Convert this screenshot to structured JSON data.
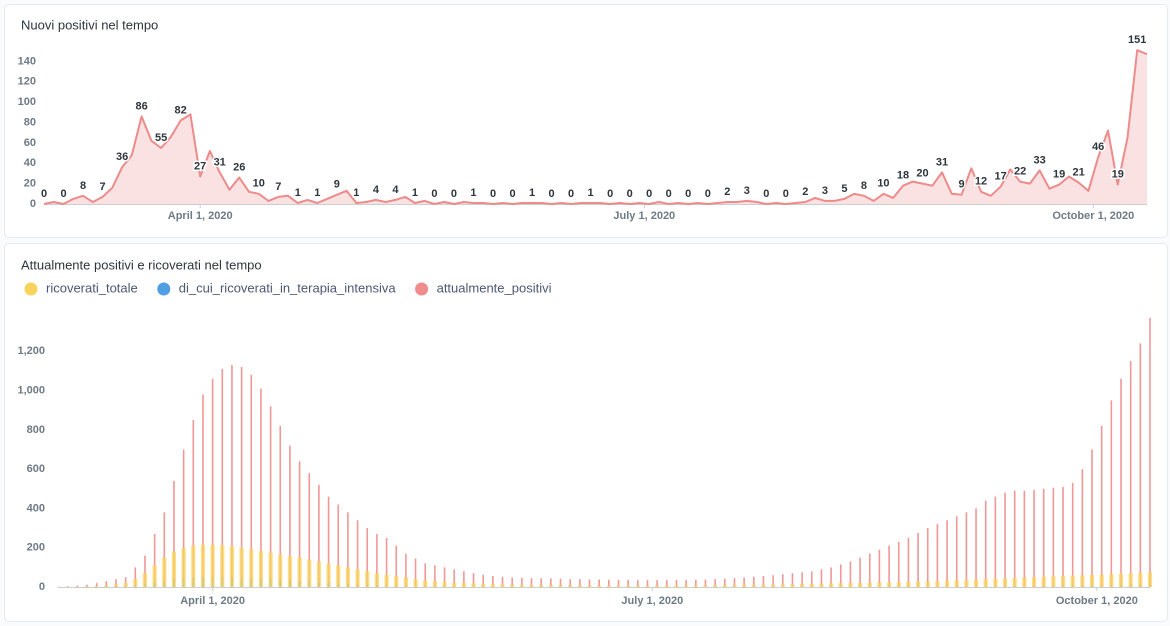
{
  "chart_data": [
    {
      "type": "area",
      "title": "Nuovi positivi nel tempo",
      "color": "#ed8b8b",
      "fill": "#fbe2e2",
      "data_labels": true,
      "x": [
        "2020-02-29",
        "2020-03-02",
        "2020-03-04",
        "2020-03-06",
        "2020-03-08",
        "2020-03-10",
        "2020-03-12",
        "2020-03-14",
        "2020-03-16",
        "2020-03-18",
        "2020-03-20",
        "2020-03-22",
        "2020-03-24",
        "2020-03-26",
        "2020-03-28",
        "2020-03-30",
        "2020-04-01",
        "2020-04-03",
        "2020-04-05",
        "2020-04-07",
        "2020-04-09",
        "2020-04-11",
        "2020-04-13",
        "2020-04-15",
        "2020-04-17",
        "2020-04-19",
        "2020-04-21",
        "2020-04-23",
        "2020-04-25",
        "2020-04-27",
        "2020-04-29",
        "2020-05-01",
        "2020-05-03",
        "2020-05-05",
        "2020-05-07",
        "2020-05-09",
        "2020-05-11",
        "2020-05-13",
        "2020-05-15",
        "2020-05-17",
        "2020-05-19",
        "2020-05-21",
        "2020-05-23",
        "2020-05-25",
        "2020-05-27",
        "2020-05-29",
        "2020-05-31",
        "2020-06-02",
        "2020-06-04",
        "2020-06-06",
        "2020-06-08",
        "2020-06-10",
        "2020-06-12",
        "2020-06-14",
        "2020-06-16",
        "2020-06-18",
        "2020-06-20",
        "2020-06-22",
        "2020-06-24",
        "2020-06-26",
        "2020-06-28",
        "2020-06-30",
        "2020-07-02",
        "2020-07-04",
        "2020-07-06",
        "2020-07-08",
        "2020-07-10",
        "2020-07-12",
        "2020-07-14",
        "2020-07-16",
        "2020-07-18",
        "2020-07-20",
        "2020-07-22",
        "2020-07-24",
        "2020-07-26",
        "2020-07-28",
        "2020-07-30",
        "2020-08-01",
        "2020-08-03",
        "2020-08-05",
        "2020-08-07",
        "2020-08-09",
        "2020-08-11",
        "2020-08-13",
        "2020-08-15",
        "2020-08-17",
        "2020-08-19",
        "2020-08-21",
        "2020-08-23",
        "2020-08-25",
        "2020-08-27",
        "2020-08-29",
        "2020-08-31",
        "2020-09-02",
        "2020-09-04",
        "2020-09-06",
        "2020-09-08",
        "2020-09-10",
        "2020-09-12",
        "2020-09-14",
        "2020-09-16",
        "2020-09-18",
        "2020-09-20",
        "2020-09-22",
        "2020-09-24",
        "2020-09-26",
        "2020-09-28",
        "2020-09-30",
        "2020-10-02",
        "2020-10-04",
        "2020-10-06",
        "2020-10-08",
        "2020-10-10",
        "2020-10-12"
      ],
      "values": [
        0,
        2,
        0,
        5,
        8,
        2,
        7,
        16,
        36,
        48,
        86,
        62,
        55,
        66,
        82,
        88,
        27,
        52,
        31,
        14,
        26,
        12,
        10,
        3,
        7,
        8,
        1,
        4,
        1,
        5,
        9,
        13,
        1,
        2,
        4,
        2,
        4,
        7,
        1,
        3,
        0,
        2,
        0,
        2,
        1,
        1,
        0,
        1,
        0,
        1,
        1,
        1,
        0,
        1,
        0,
        1,
        1,
        1,
        0,
        1,
        0,
        1,
        0,
        2,
        0,
        1,
        0,
        1,
        0,
        1,
        2,
        2,
        3,
        2,
        0,
        1,
        0,
        1,
        2,
        6,
        3,
        3,
        5,
        10,
        8,
        3,
        10,
        6,
        18,
        22,
        20,
        18,
        31,
        10,
        9,
        35,
        12,
        8,
        17,
        34,
        22,
        20,
        33,
        15,
        19,
        27,
        21,
        13,
        46,
        72,
        19,
        65,
        151,
        147
      ],
      "xlim": [
        "2020-02-29",
        "2020-10-12"
      ],
      "xticks": [
        {
          "value": "2020-04-01",
          "label": "April 1, 2020"
        },
        {
          "value": "2020-07-01",
          "label": "July 1, 2020"
        },
        {
          "value": "2020-10-01",
          "label": "October 1, 2020"
        }
      ],
      "ylim": [
        0,
        160
      ],
      "yticks": [
        0,
        20,
        40,
        60,
        80,
        100,
        120,
        140
      ]
    },
    {
      "type": "bar",
      "title": "Attualmente positivi e ricoverati nel tempo",
      "legend": "top",
      "x": [
        "2020-02-29",
        "2020-03-02",
        "2020-03-04",
        "2020-03-06",
        "2020-03-08",
        "2020-03-10",
        "2020-03-12",
        "2020-03-14",
        "2020-03-16",
        "2020-03-18",
        "2020-03-20",
        "2020-03-22",
        "2020-03-24",
        "2020-03-26",
        "2020-03-28",
        "2020-03-30",
        "2020-04-01",
        "2020-04-03",
        "2020-04-05",
        "2020-04-07",
        "2020-04-09",
        "2020-04-11",
        "2020-04-13",
        "2020-04-15",
        "2020-04-17",
        "2020-04-19",
        "2020-04-21",
        "2020-04-23",
        "2020-04-25",
        "2020-04-27",
        "2020-04-29",
        "2020-05-01",
        "2020-05-03",
        "2020-05-05",
        "2020-05-07",
        "2020-05-09",
        "2020-05-11",
        "2020-05-13",
        "2020-05-15",
        "2020-05-17",
        "2020-05-19",
        "2020-05-21",
        "2020-05-23",
        "2020-05-25",
        "2020-05-27",
        "2020-05-29",
        "2020-05-31",
        "2020-06-02",
        "2020-06-04",
        "2020-06-06",
        "2020-06-08",
        "2020-06-10",
        "2020-06-12",
        "2020-06-14",
        "2020-06-16",
        "2020-06-18",
        "2020-06-20",
        "2020-06-22",
        "2020-06-24",
        "2020-06-26",
        "2020-06-28",
        "2020-06-30",
        "2020-07-02",
        "2020-07-04",
        "2020-07-06",
        "2020-07-08",
        "2020-07-10",
        "2020-07-12",
        "2020-07-14",
        "2020-07-16",
        "2020-07-18",
        "2020-07-20",
        "2020-07-22",
        "2020-07-24",
        "2020-07-26",
        "2020-07-28",
        "2020-07-30",
        "2020-08-01",
        "2020-08-03",
        "2020-08-05",
        "2020-08-07",
        "2020-08-09",
        "2020-08-11",
        "2020-08-13",
        "2020-08-15",
        "2020-08-17",
        "2020-08-19",
        "2020-08-21",
        "2020-08-23",
        "2020-08-25",
        "2020-08-27",
        "2020-08-29",
        "2020-08-31",
        "2020-09-02",
        "2020-09-04",
        "2020-09-06",
        "2020-09-08",
        "2020-09-10",
        "2020-09-12",
        "2020-09-14",
        "2020-09-16",
        "2020-09-18",
        "2020-09-20",
        "2020-09-22",
        "2020-09-24",
        "2020-09-26",
        "2020-09-28",
        "2020-09-30",
        "2020-10-02",
        "2020-10-04",
        "2020-10-06",
        "2020-10-08",
        "2020-10-10",
        "2020-10-12"
      ],
      "series": [
        {
          "name": "ricoverati_totale",
          "color": "#f9d45c",
          "values": [
            0,
            1,
            2,
            3,
            5,
            8,
            12,
            20,
            40,
            70,
            110,
            150,
            180,
            200,
            210,
            215,
            215,
            212,
            208,
            200,
            192,
            185,
            175,
            165,
            158,
            150,
            140,
            130,
            120,
            110,
            100,
            90,
            80,
            70,
            62,
            55,
            48,
            40,
            34,
            30,
            26,
            22,
            20,
            18,
            16,
            14,
            13,
            12,
            11,
            10,
            10,
            9,
            9,
            8,
            8,
            8,
            7,
            7,
            7,
            7,
            7,
            7,
            7,
            7,
            8,
            8,
            8,
            9,
            9,
            10,
            10,
            11,
            11,
            12,
            12,
            13,
            14,
            15,
            16,
            17,
            18,
            19,
            20,
            21,
            22,
            23,
            24,
            25,
            26,
            27,
            28,
            30,
            32,
            34,
            36,
            38,
            40,
            42,
            44,
            46,
            48,
            50,
            52,
            54,
            56,
            58,
            60,
            62,
            64,
            66,
            68,
            70,
            72,
            75
          ]
        },
        {
          "name": "di_cui_ricoverati_in_terapia_intensiva",
          "color": "#509ee3",
          "values": [
            0,
            0,
            1,
            1,
            2,
            3,
            4,
            6,
            10,
            16,
            24,
            32,
            40,
            45,
            48,
            50,
            50,
            49,
            48,
            46,
            44,
            42,
            40,
            37,
            34,
            31,
            28,
            25,
            22,
            19,
            16,
            14,
            12,
            10,
            8,
            7,
            6,
            5,
            4,
            4,
            3,
            3,
            3,
            2,
            2,
            2,
            2,
            2,
            1,
            1,
            1,
            1,
            1,
            1,
            1,
            1,
            1,
            1,
            1,
            1,
            1,
            1,
            1,
            1,
            1,
            1,
            1,
            1,
            1,
            1,
            1,
            1,
            1,
            1,
            1,
            1,
            1,
            1,
            2,
            2,
            2,
            2,
            2,
            2,
            2,
            2,
            3,
            3,
            3,
            3,
            3,
            3,
            3,
            4,
            4,
            4,
            4,
            4,
            5,
            5,
            5,
            5,
            6,
            6,
            6,
            6,
            7,
            7,
            7,
            8,
            8,
            8,
            9,
            9
          ]
        },
        {
          "name": "attualmente_positivi",
          "color": "#ef8c8c",
          "values": [
            2,
            4,
            8,
            12,
            20,
            30,
            40,
            50,
            100,
            160,
            270,
            380,
            540,
            700,
            850,
            980,
            1060,
            1110,
            1130,
            1120,
            1080,
            1010,
            920,
            820,
            720,
            640,
            580,
            520,
            460,
            420,
            380,
            340,
            300,
            270,
            250,
            210,
            170,
            145,
            120,
            110,
            100,
            90,
            80,
            70,
            62,
            56,
            52,
            48,
            46,
            45,
            45,
            44,
            42,
            40,
            40,
            38,
            38,
            37,
            36,
            36,
            35,
            35,
            35,
            35,
            36,
            36,
            37,
            38,
            40,
            42,
            45,
            48,
            52,
            56,
            60,
            65,
            70,
            75,
            80,
            90,
            100,
            115,
            130,
            150,
            170,
            190,
            210,
            230,
            250,
            275,
            300,
            320,
            340,
            360,
            380,
            400,
            440,
            460,
            480,
            490,
            490,
            495,
            500,
            505,
            510,
            530,
            600,
            700,
            820,
            950,
            1060,
            1150,
            1240,
            1370
          ]
        }
      ],
      "xlim": [
        "2020-02-29",
        "2020-10-12"
      ],
      "xticks": [
        {
          "value": "2020-04-01",
          "label": "April 1, 2020"
        },
        {
          "value": "2020-07-01",
          "label": "July 1, 2020"
        },
        {
          "value": "2020-10-01",
          "label": "October 1, 2020"
        }
      ],
      "ylim": [
        0,
        1400
      ],
      "yticks": [
        0,
        200,
        400,
        600,
        800,
        {
          "value": 1000,
          "label": "1,000"
        },
        {
          "value": 1200,
          "label": "1,200"
        }
      ]
    }
  ]
}
